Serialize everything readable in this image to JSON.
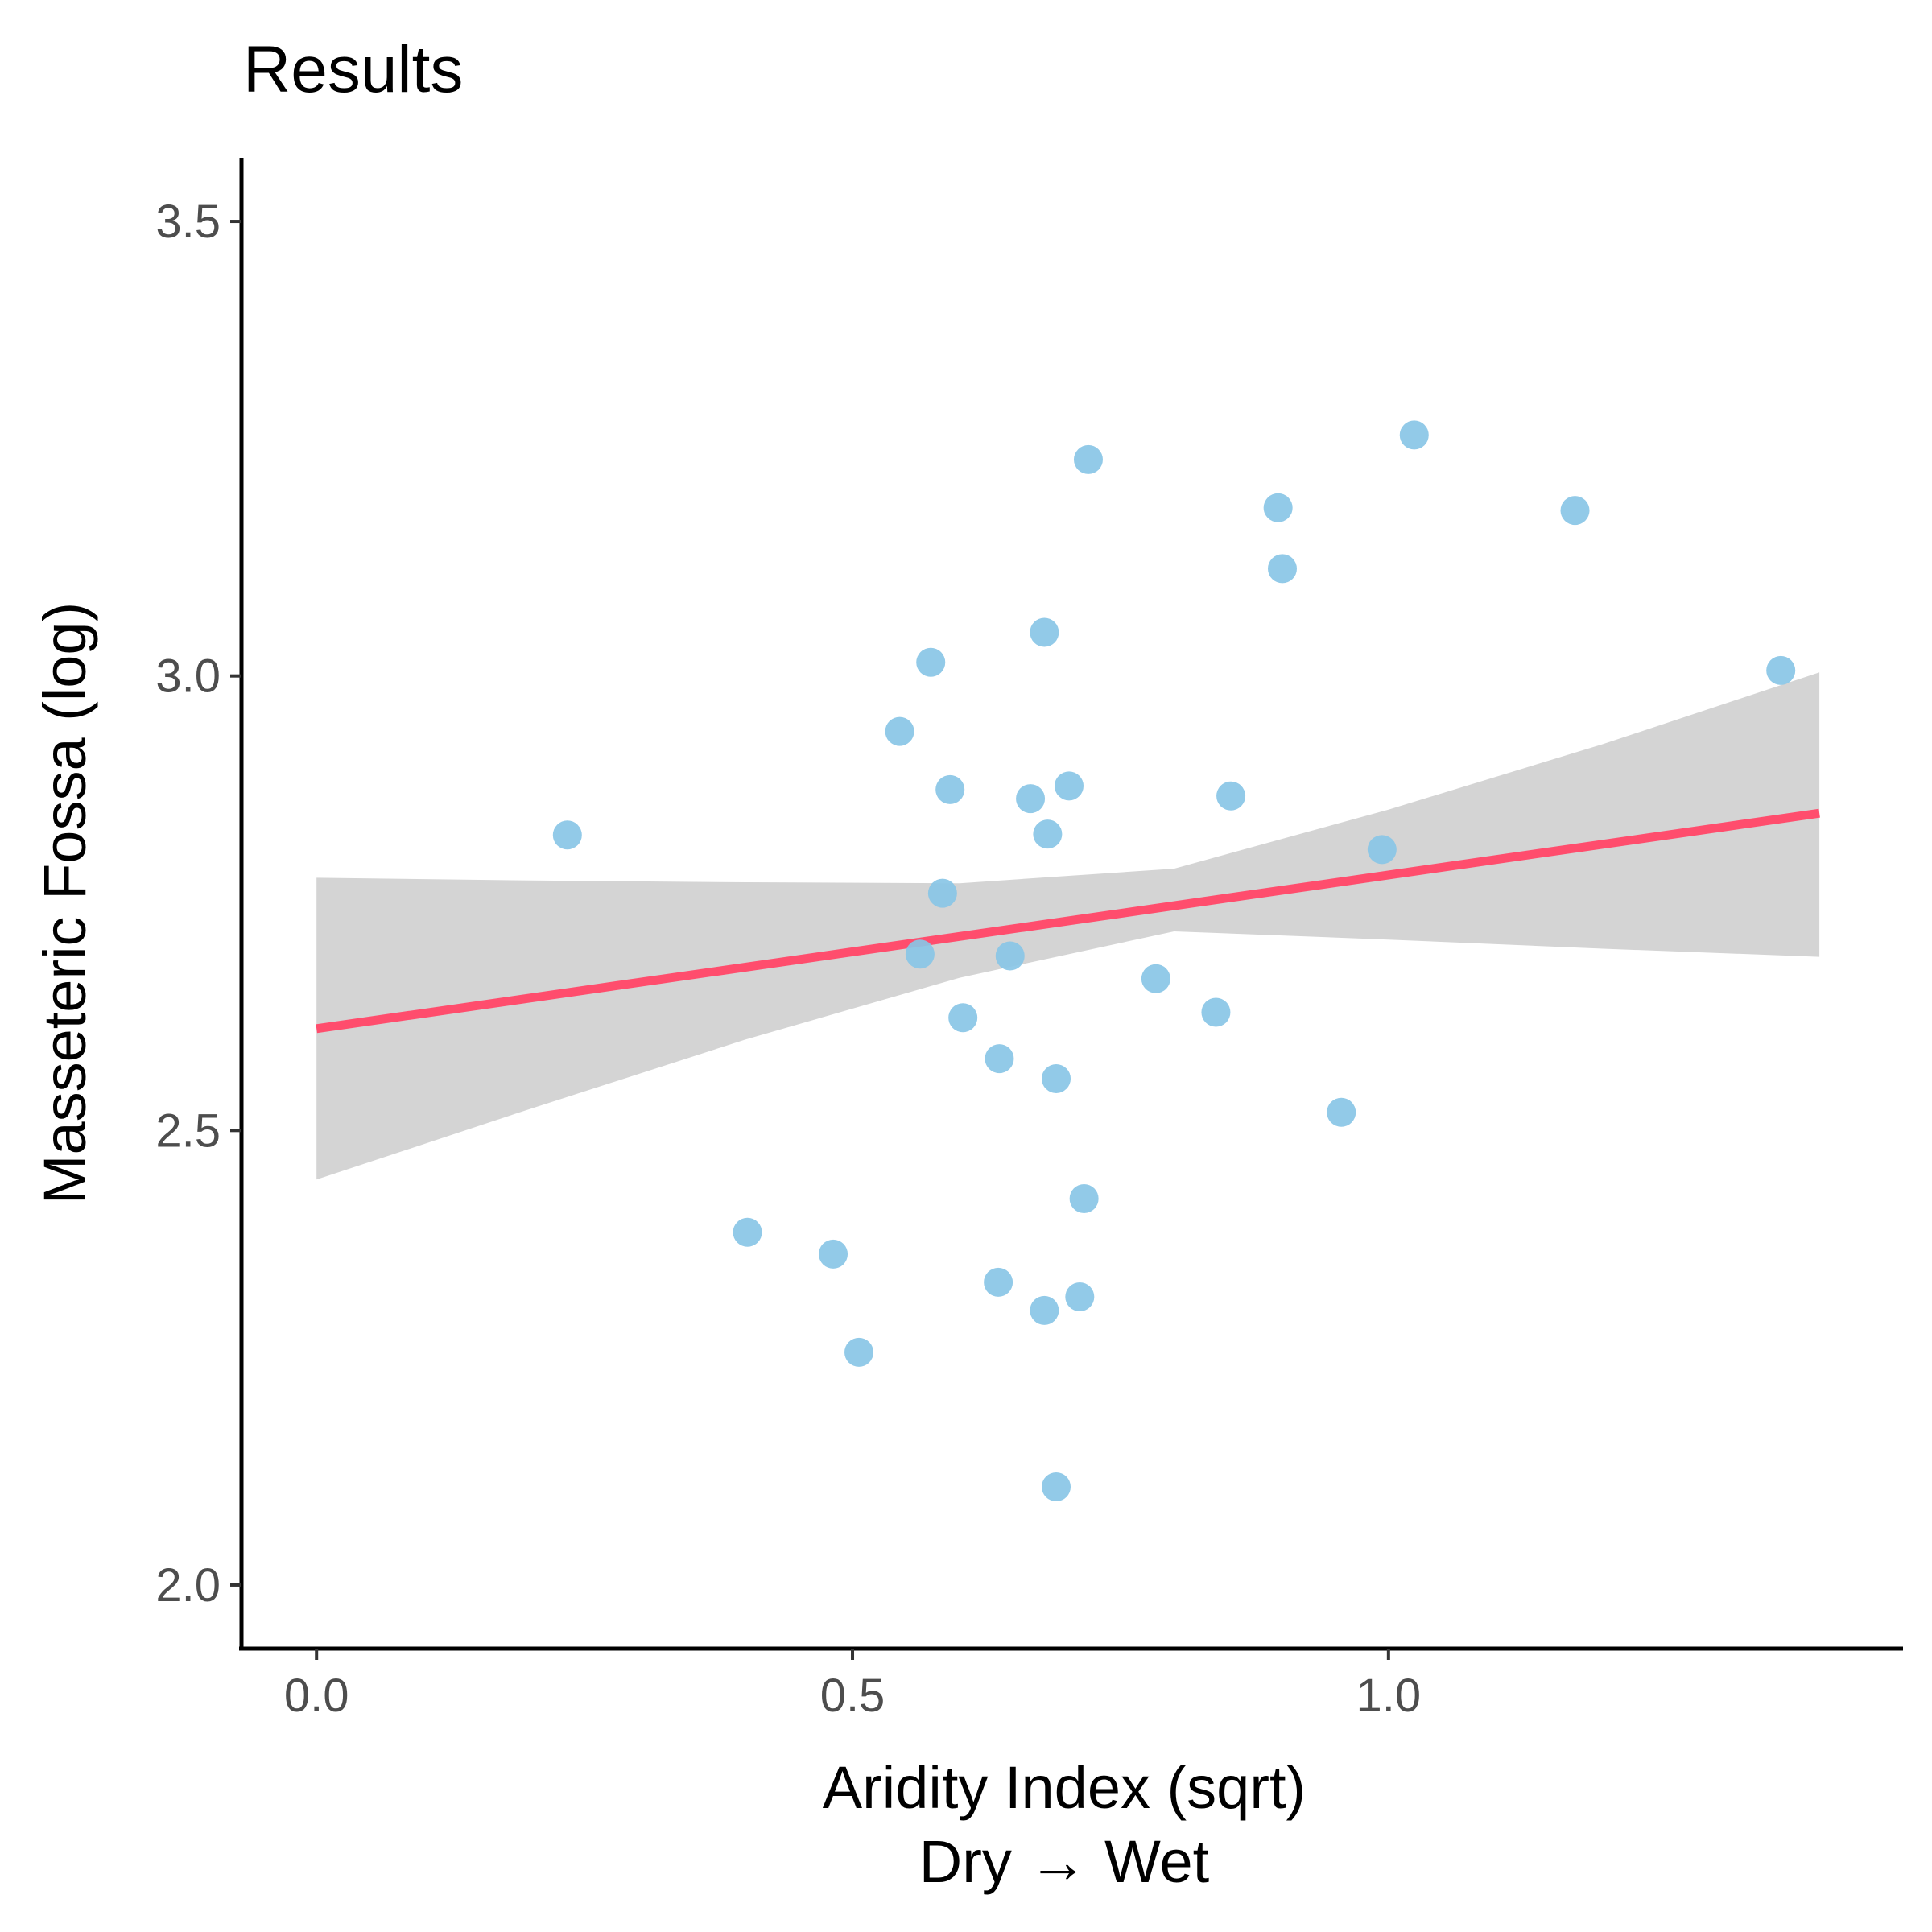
{
  "chart_data": {
    "type": "scatter",
    "title": "Results",
    "xlabel": "Aridity Index (sqrt)",
    "xlabel_line2": "Dry → Wet",
    "ylabel": "Masseteric Fossa (log)",
    "xlim": [
      -0.07,
      1.48
    ],
    "ylim": [
      1.93,
      3.57
    ],
    "x_ticks": [
      0.0,
      0.5,
      1.0
    ],
    "x_tick_labels": [
      "0.0",
      "0.5",
      "1.0"
    ],
    "y_ticks": [
      2.0,
      2.5,
      3.0,
      3.5
    ],
    "y_tick_labels": [
      "2.0",
      "2.5",
      "3.0",
      "3.5"
    ],
    "grid": false,
    "legend": "none",
    "colors": {
      "points": "#89c5e6",
      "fit_line": "#ff4d6d",
      "confidence_band": "#d4d4d4",
      "axis": "#000000"
    },
    "points": [
      {
        "x": 0.234,
        "y": 2.825
      },
      {
        "x": 0.402,
        "y": 2.388
      },
      {
        "x": 0.482,
        "y": 2.364
      },
      {
        "x": 0.506,
        "y": 2.256
      },
      {
        "x": 0.544,
        "y": 2.939
      },
      {
        "x": 0.563,
        "y": 2.694
      },
      {
        "x": 0.573,
        "y": 3.015
      },
      {
        "x": 0.584,
        "y": 2.761
      },
      {
        "x": 0.591,
        "y": 2.875
      },
      {
        "x": 0.603,
        "y": 2.624
      },
      {
        "x": 0.636,
        "y": 2.333
      },
      {
        "x": 0.637,
        "y": 2.579
      },
      {
        "x": 0.647,
        "y": 2.692
      },
      {
        "x": 0.666,
        "y": 2.865
      },
      {
        "x": 0.679,
        "y": 3.048
      },
      {
        "x": 0.679,
        "y": 2.302
      },
      {
        "x": 0.682,
        "y": 2.826
      },
      {
        "x": 0.69,
        "y": 2.557
      },
      {
        "x": 0.69,
        "y": 2.108
      },
      {
        "x": 0.702,
        "y": 2.879
      },
      {
        "x": 0.712,
        "y": 2.317
      },
      {
        "x": 0.716,
        "y": 2.425
      },
      {
        "x": 0.72,
        "y": 3.238
      },
      {
        "x": 0.783,
        "y": 2.667
      },
      {
        "x": 0.839,
        "y": 2.63
      },
      {
        "x": 0.853,
        "y": 2.868
      },
      {
        "x": 0.897,
        "y": 3.185
      },
      {
        "x": 0.901,
        "y": 3.118
      },
      {
        "x": 0.956,
        "y": 2.52
      },
      {
        "x": 0.994,
        "y": 2.809
      },
      {
        "x": 1.024,
        "y": 3.265
      },
      {
        "x": 1.174,
        "y": 3.182
      },
      {
        "x": 1.366,
        "y": 3.006
      }
    ],
    "fit_line": {
      "x": [
        0.0,
        1.402
      ],
      "y": [
        2.612,
        2.849
      ]
    },
    "confidence_band": {
      "x": [
        0.0,
        0.2,
        0.4,
        0.6,
        0.8,
        1.0,
        1.2,
        1.402
      ],
      "upper": [
        2.778,
        2.775,
        2.773,
        2.772,
        2.788,
        2.853,
        2.925,
        3.004
      ],
      "lower": [
        2.446,
        2.524,
        2.6,
        2.668,
        2.719,
        2.71,
        2.7,
        2.691
      ]
    }
  }
}
